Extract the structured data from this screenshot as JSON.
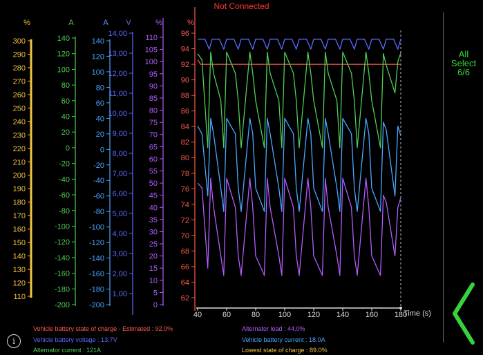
{
  "status": {
    "text": "Not Connected"
  },
  "select": {
    "line1": "All",
    "line2": "Select",
    "line3": "6/6"
  },
  "icons": {
    "info": "info-icon",
    "back": "chevron-left-icon"
  },
  "colors": {
    "soc": "#ff5a4a",
    "voltage": "#5b6bff",
    "alt_current": "#4fcf55",
    "alt_load": "#b45cff",
    "batt_current": "#4aa8ff",
    "lowest_soc": "#f5c542",
    "status": "#ff3b30",
    "select": "#38d33a"
  },
  "legend": {
    "soc": "Vehicle battery state of charge  -  Estimated : 92.0%",
    "voltage": "Vehicle battery voltage : 13.7V",
    "alt_current": "Alternator current : 121A",
    "alt_load": "Alternator load : 44.0%",
    "batt_current": "Vehicle battery current : 18.0A",
    "lowest_soc": "Lowest state of charge : 89.0%"
  },
  "chart_data": {
    "type": "line",
    "xlabel": "Time (s)",
    "xlim": [
      40,
      180
    ],
    "xticks": [
      40,
      60,
      80,
      100,
      120,
      140,
      160,
      180
    ],
    "axes": [
      {
        "unit": "%",
        "min": 110,
        "max": 300,
        "ticks": [
          110,
          120,
          130,
          140,
          150,
          160,
          170,
          180,
          190,
          200,
          210,
          220,
          230,
          240,
          250,
          260,
          270,
          280,
          290,
          300
        ],
        "color": "#f5c542"
      },
      {
        "unit": "A",
        "min": -200,
        "max": 140,
        "ticks": [
          -200,
          -180,
          -160,
          -140,
          -120,
          -100,
          -80,
          -60,
          -40,
          -20,
          0,
          20,
          40,
          60,
          80,
          100,
          120,
          140
        ],
        "color": "#4fcf55"
      },
      {
        "unit": "A",
        "min": -200,
        "max": 140,
        "ticks": [
          -200,
          -180,
          -160,
          -140,
          -120,
          -100,
          -80,
          -60,
          -40,
          -20,
          0,
          20,
          40,
          60,
          80,
          100,
          120,
          140
        ],
        "color": "#4aa8ff"
      },
      {
        "unit": "V",
        "min": 0,
        "max": 14,
        "ticks": [
          "1,00",
          "2,00",
          "3,00",
          "4,00",
          "5,00",
          "6,00",
          "7,00",
          "8,00",
          "9,00",
          "10,00",
          "11,00",
          "12,00",
          "13,00",
          "14,00"
        ],
        "tickvals": [
          1,
          2,
          3,
          4,
          5,
          6,
          7,
          8,
          9,
          10,
          11,
          12,
          13,
          14
        ],
        "color": "#5b6bff"
      },
      {
        "unit": "%",
        "min": 0,
        "max": 115,
        "ticks": [
          0,
          5,
          10,
          15,
          20,
          25,
          30,
          35,
          40,
          45,
          50,
          55,
          60,
          65,
          70,
          75,
          80,
          85,
          90,
          95,
          100,
          105,
          110
        ],
        "color": "#b45cff"
      },
      {
        "unit": "%",
        "min": 61,
        "max": 96,
        "ticks": [
          62,
          64,
          66,
          68,
          70,
          72,
          74,
          76,
          78,
          80,
          82,
          84,
          86,
          88,
          90,
          92,
          94,
          96
        ],
        "color": "#ff5a4a"
      }
    ],
    "series": [
      {
        "name": "Vehicle battery state of charge",
        "axis": 5,
        "color": "#ff5a4a",
        "x": [
          40,
          42,
          180
        ],
        "y": [
          92.6,
          92.0,
          92.0
        ]
      },
      {
        "name": "Vehicle battery voltage",
        "axis": 3,
        "color": "#5b6bff",
        "x": [
          40,
          45,
          48,
          50,
          55,
          58,
          60,
          65,
          68,
          70,
          75,
          78,
          80,
          85,
          88,
          90,
          95,
          98,
          100,
          105,
          108,
          110,
          115,
          118,
          120,
          125,
          128,
          130,
          135,
          138,
          140,
          145,
          148,
          150,
          155,
          158,
          160,
          165,
          168,
          170,
          175,
          178,
          180
        ],
        "y": [
          13.7,
          13.7,
          13.2,
          13.7,
          13.7,
          13.2,
          13.7,
          13.7,
          13.2,
          13.7,
          13.7,
          13.2,
          13.7,
          13.7,
          13.2,
          13.7,
          13.7,
          13.2,
          13.7,
          13.7,
          13.2,
          13.7,
          13.7,
          13.2,
          13.7,
          13.7,
          13.2,
          13.7,
          13.7,
          13.2,
          13.7,
          13.7,
          13.2,
          13.7,
          13.7,
          13.2,
          13.7,
          13.7,
          13.2,
          13.7,
          13.7,
          13.2,
          13.7
        ]
      },
      {
        "name": "Alternator current",
        "axis": 1,
        "color": "#4fcf55",
        "x": [
          40,
          43,
          47,
          49,
          51,
          56,
          58,
          60,
          66,
          68,
          70,
          76,
          78,
          80,
          86,
          88,
          90,
          96,
          98,
          100,
          106,
          108,
          110,
          116,
          118,
          120,
          126,
          128,
          130,
          136,
          138,
          140,
          146,
          148,
          150,
          156,
          158,
          160,
          166,
          168,
          170,
          176,
          178,
          180
        ],
        "y": [
          120,
          112,
          0,
          122,
          95,
          60,
          0,
          122,
          95,
          60,
          0,
          122,
          95,
          60,
          0,
          122,
          95,
          60,
          0,
          122,
          95,
          60,
          0,
          122,
          95,
          60,
          0,
          122,
          95,
          60,
          0,
          122,
          95,
          60,
          0,
          122,
          95,
          60,
          0,
          120,
          105,
          70,
          110,
          121
        ]
      },
      {
        "name": "Alternator load",
        "axis": 4,
        "color": "#b45cff",
        "x": [
          40,
          43,
          47,
          49,
          51,
          56,
          58,
          60,
          66,
          68,
          70,
          76,
          78,
          80,
          86,
          88,
          90,
          96,
          98,
          100,
          106,
          108,
          110,
          116,
          118,
          120,
          126,
          128,
          130,
          136,
          138,
          140,
          146,
          148,
          150,
          156,
          158,
          160,
          166,
          168,
          170,
          176,
          178,
          180
        ],
        "y": [
          50,
          48,
          15,
          52,
          40,
          20,
          12,
          52,
          40,
          20,
          12,
          52,
          40,
          20,
          12,
          52,
          40,
          20,
          12,
          52,
          40,
          20,
          12,
          52,
          40,
          20,
          12,
          52,
          40,
          20,
          12,
          52,
          40,
          20,
          12,
          52,
          40,
          20,
          12,
          45,
          42,
          20,
          40,
          44
        ]
      },
      {
        "name": "Vehicle battery current",
        "axis": 2,
        "color": "#4aa8ff",
        "x": [
          40,
          43,
          47,
          49,
          51,
          56,
          58,
          60,
          66,
          68,
          70,
          76,
          78,
          80,
          86,
          88,
          90,
          96,
          98,
          100,
          106,
          108,
          110,
          116,
          118,
          120,
          126,
          128,
          130,
          136,
          138,
          140,
          146,
          148,
          150,
          156,
          158,
          160,
          166,
          168,
          170,
          176,
          178,
          180
        ],
        "y": [
          30,
          20,
          -60,
          40,
          20,
          -50,
          -80,
          40,
          20,
          -50,
          -80,
          40,
          20,
          -50,
          -80,
          40,
          20,
          -50,
          -80,
          40,
          20,
          -50,
          -80,
          40,
          20,
          -50,
          -80,
          40,
          20,
          -50,
          -80,
          40,
          20,
          -50,
          -80,
          40,
          20,
          -50,
          -80,
          35,
          25,
          -60,
          30,
          18
        ]
      }
    ],
    "cursor_x": 180
  }
}
